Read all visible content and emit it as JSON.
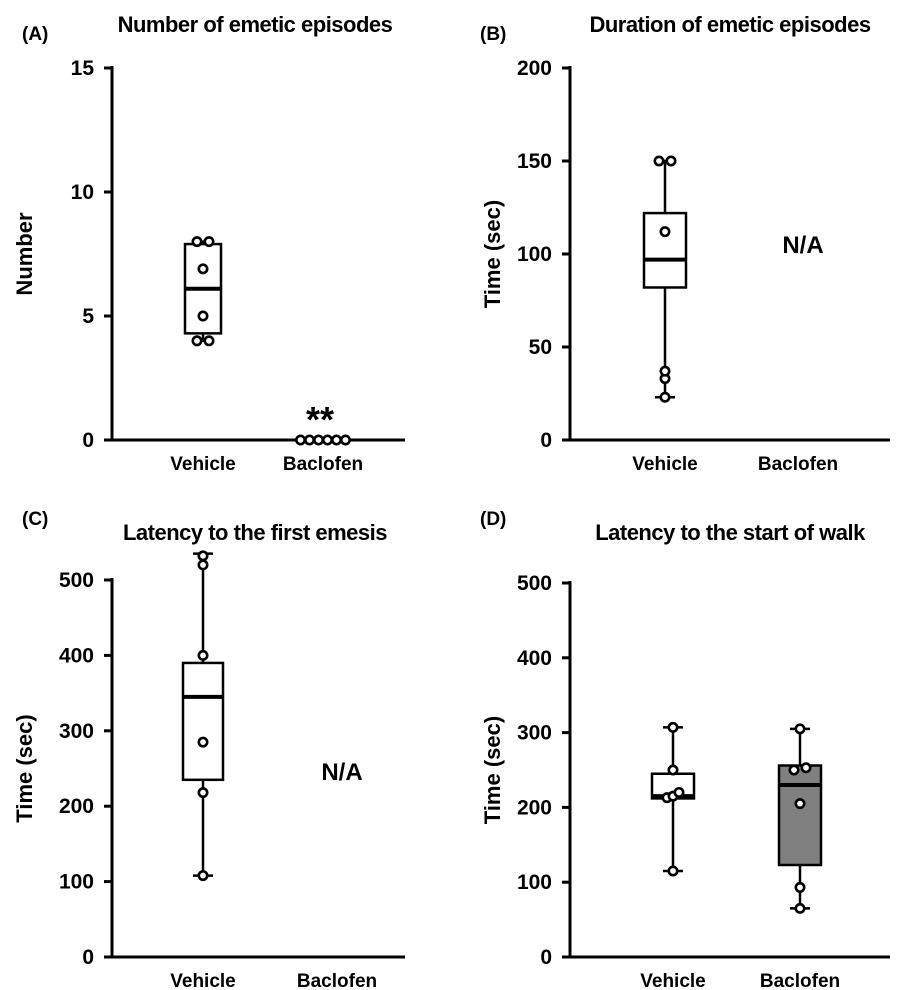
{
  "chart_data": [
    {
      "panel": "(A)",
      "type": "box",
      "title": "Number of emetic episodes",
      "ylabel": "Number",
      "xlabel": "",
      "ylim": [
        0,
        15
      ],
      "yticks": [
        0,
        5,
        10,
        15
      ],
      "categories": [
        "Vehicle",
        "Baclofen"
      ],
      "groups": [
        {
          "name": "Vehicle",
          "box": {
            "min": 4,
            "q1": 4.3,
            "median": 6.1,
            "q3": 7.9,
            "max": 8
          },
          "points": [
            4,
            4,
            5,
            6.9,
            8,
            8
          ],
          "fill": "#ffffff"
        },
        {
          "name": "Baclofen",
          "box": null,
          "points": [
            0,
            0,
            0,
            0,
            0,
            0
          ],
          "fill": "#ffffff"
        }
      ],
      "annotations": [
        {
          "category": "Baclofen",
          "text": "**"
        }
      ]
    },
    {
      "panel": "(B)",
      "type": "box",
      "title": "Duration of emetic episodes",
      "ylabel": "Time (sec)",
      "xlabel": "",
      "ylim": [
        0,
        200
      ],
      "yticks": [
        0,
        50,
        100,
        150,
        200
      ],
      "categories": [
        "Vehicle",
        "Baclofen"
      ],
      "groups": [
        {
          "name": "Vehicle",
          "box": {
            "min": 23,
            "q1": 82,
            "median": 97,
            "q3": 122,
            "max": 150
          },
          "points": [
            23,
            33,
            37,
            112,
            150,
            150
          ],
          "fill": "#ffffff"
        },
        {
          "name": "Baclofen",
          "box": null,
          "points": [],
          "fill": "#ffffff"
        }
      ],
      "annotations": [
        {
          "category": "Baclofen",
          "text": "N/A"
        }
      ]
    },
    {
      "panel": "(C)",
      "type": "box",
      "title": "Latency to the first emesis",
      "ylabel": "Time (sec)",
      "xlabel": "",
      "ylim": [
        0,
        500
      ],
      "yticks": [
        0,
        100,
        200,
        300,
        400,
        500
      ],
      "categories": [
        "Vehicle",
        "Baclofen"
      ],
      "groups": [
        {
          "name": "Vehicle",
          "box": {
            "min": 108,
            "q1": 235,
            "median": 345,
            "q3": 390,
            "max": 535
          },
          "points": [
            108,
            218,
            285,
            400,
            520,
            532
          ],
          "fill": "#ffffff"
        },
        {
          "name": "Baclofen",
          "box": null,
          "points": [],
          "fill": "#ffffff"
        }
      ],
      "annotations": [
        {
          "category": "Baclofen",
          "text": "N/A"
        }
      ]
    },
    {
      "panel": "(D)",
      "type": "box",
      "title": "Latency to the start of walk",
      "ylabel": "Time (sec)",
      "xlabel": "",
      "ylim": [
        0,
        500
      ],
      "yticks": [
        0,
        100,
        200,
        300,
        400,
        500
      ],
      "categories": [
        "Vehicle",
        "Baclofen"
      ],
      "groups": [
        {
          "name": "Vehicle",
          "box": {
            "min": 115,
            "q1": 212,
            "median": 215,
            "q3": 245,
            "max": 307
          },
          "points": [
            115,
            213,
            215,
            220,
            250,
            307
          ],
          "fill": "#ffffff"
        },
        {
          "name": "Baclofen",
          "box": {
            "min": 65,
            "q1": 123,
            "median": 230,
            "q3": 256,
            "max": 305
          },
          "points": [
            65,
            93,
            205,
            250,
            253,
            305
          ],
          "fill": "#808080"
        }
      ],
      "annotations": []
    }
  ]
}
